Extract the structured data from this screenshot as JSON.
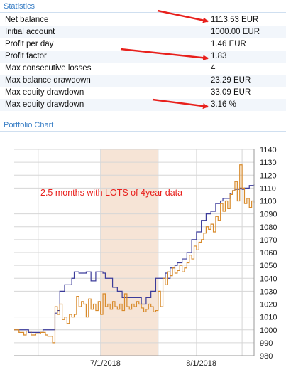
{
  "statistics": {
    "title": "Statistics",
    "rows": [
      {
        "label": "Net balance",
        "value": "1113.53 EUR"
      },
      {
        "label": "Initial account",
        "value": "1000.00 EUR"
      },
      {
        "label": "Profit per day",
        "value": "1.46 EUR"
      },
      {
        "label": "Profit factor",
        "value": "1.83"
      },
      {
        "label": "Max consecutive losses",
        "value": "4"
      },
      {
        "label": "Max balance drawdown",
        "value": "23.29 EUR"
      },
      {
        "label": "Max equity drawdown",
        "value": "33.09 EUR"
      },
      {
        "label": "Max equity drawdown",
        "value": "3.16 %"
      }
    ]
  },
  "annotation_color": "#e8201c",
  "portfolio": {
    "title": "Portfolio Chart"
  },
  "chart_data": {
    "type": "line",
    "annotation": "2.5 months with LOTS of 4year data",
    "x_tick_labels": [
      "7/1/2018",
      "8/1/2018"
    ],
    "y_ticks": [
      980,
      990,
      1000,
      1010,
      1020,
      1030,
      1040,
      1050,
      1060,
      1070,
      1080,
      1090,
      1100,
      1110,
      1120,
      1130,
      1140
    ],
    "ylim": [
      980,
      1140
    ],
    "x_range": [
      0,
      100
    ],
    "highlight_x": [
      36,
      60
    ],
    "highlight_color": "#f6e4d6",
    "grid": true,
    "series": [
      {
        "color": "#3b3b9a",
        "x": [
          0,
          5,
          6,
          10,
          12,
          16,
          17,
          18,
          19,
          20,
          21,
          23,
          24,
          25,
          26,
          27,
          28,
          29,
          30,
          31,
          32,
          33,
          34,
          35,
          36,
          37,
          38,
          39,
          40,
          41,
          42,
          43,
          44,
          45,
          47,
          48,
          50,
          52,
          53,
          54,
          55,
          56,
          57,
          58,
          59,
          60,
          61,
          62,
          63,
          64,
          65,
          66,
          67,
          68,
          70,
          72,
          74,
          76,
          78,
          80,
          82,
          84,
          86,
          87,
          88,
          89,
          90,
          91,
          92,
          93,
          94,
          95,
          96,
          98,
          100
        ],
        "y": [
          1000,
          1000,
          998,
          998,
          1000,
          1000,
          1013,
          1015,
          1030,
          1030,
          1035,
          1035,
          1040,
          1045,
          1045,
          1044,
          1044,
          1044,
          1045,
          1045,
          1038,
          1038,
          1045,
          1045,
          1045,
          1044,
          1040,
          1040,
          1040,
          1033,
          1033,
          1030,
          1030,
          1025,
          1025,
          1025,
          1025,
          1025,
          1020,
          1020,
          1025,
          1025,
          1030,
          1030,
          1040,
          1040,
          1040,
          1040,
          1044,
          1040,
          1048,
          1048,
          1050,
          1052,
          1055,
          1060,
          1070,
          1076,
          1085,
          1090,
          1092,
          1098,
          1100,
          1102,
          1102,
          1102,
          1106,
          1108,
          1109,
          1109,
          1110,
          1109,
          1110,
          1112,
          1113
        ]
      },
      {
        "color": "#d88a2a",
        "x": [
          0,
          2,
          4,
          5,
          7,
          9,
          11,
          13,
          14,
          16,
          17,
          18,
          19,
          20,
          21,
          22,
          23,
          24,
          25,
          26,
          27,
          28,
          29,
          30,
          31,
          32,
          33,
          34,
          35,
          36,
          37,
          38,
          39,
          40,
          41,
          42,
          43,
          44,
          45,
          46,
          47,
          48,
          49,
          50,
          51,
          52,
          53,
          54,
          55,
          56,
          57,
          58,
          59,
          60,
          61,
          62,
          63,
          64,
          65,
          66,
          67,
          68,
          69,
          70,
          71,
          72,
          73,
          74,
          75,
          76,
          77,
          78,
          79,
          80,
          81,
          82,
          83,
          84,
          85,
          86,
          87,
          88,
          89,
          90,
          91,
          92,
          93,
          94,
          95,
          96,
          97,
          98,
          99,
          100
        ],
        "y": [
          1000,
          998,
          996,
          999,
          996,
          997,
          998,
          996,
          995,
          990,
          1018,
          1012,
          1020,
          1008,
          1010,
          1005,
          1012,
          1010,
          1012,
          1026,
          1018,
          1022,
          1020,
          1010,
          1024,
          1016,
          1020,
          1015,
          1022,
          1012,
          1028,
          1018,
          1020,
          1016,
          1022,
          1018,
          1016,
          1020,
          1015,
          1028,
          1018,
          1016,
          1020,
          1018,
          1022,
          1020,
          1017,
          1014,
          1016,
          1020,
          1018,
          1014,
          1015,
          1030,
          1018,
          1040,
          1035,
          1045,
          1042,
          1048,
          1044,
          1046,
          1050,
          1045,
          1048,
          1052,
          1058,
          1055,
          1065,
          1062,
          1068,
          1070,
          1075,
          1080,
          1078,
          1082,
          1076,
          1088,
          1085,
          1098,
          1092,
          1100,
          1094,
          1105,
          1108,
          1115,
          1100,
          1128,
          1110,
          1098,
          1102,
          1095,
          1100,
          1098
        ]
      }
    ]
  }
}
